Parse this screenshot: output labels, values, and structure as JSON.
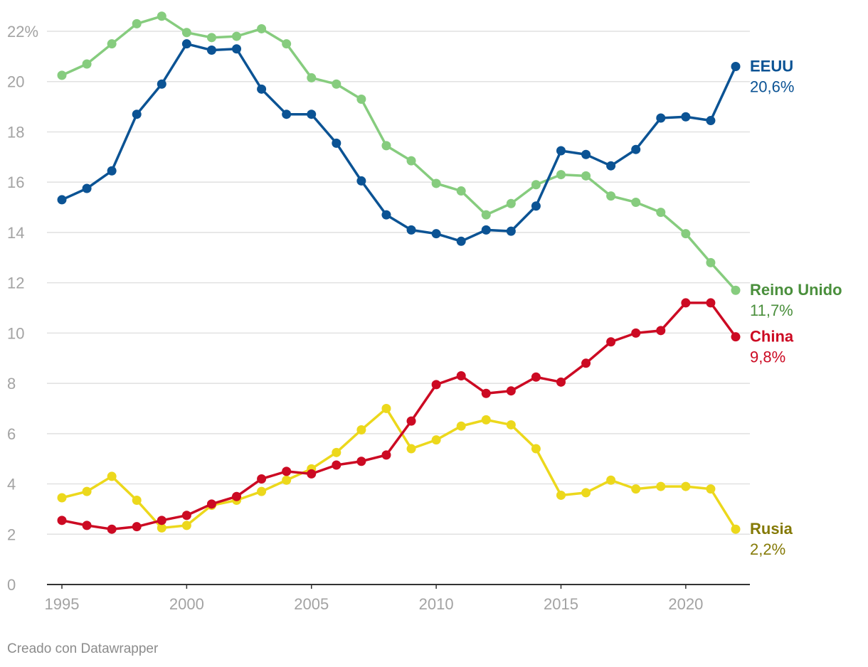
{
  "chart_data": {
    "type": "line",
    "title": "",
    "xlabel": "",
    "ylabel": "",
    "ylim": [
      0,
      22
    ],
    "xlim": [
      1995,
      2022
    ],
    "yticks": [
      0,
      2,
      4,
      6,
      8,
      10,
      12,
      14,
      16,
      18,
      20,
      22
    ],
    "ytick_labels": [
      "0",
      "2",
      "4",
      "6",
      "8",
      "10",
      "12",
      "14",
      "16",
      "18",
      "20",
      "22%"
    ],
    "xticks": [
      1995,
      2000,
      2005,
      2010,
      2015,
      2020
    ],
    "xtick_labels": [
      "1995",
      "2000",
      "2005",
      "2010",
      "2015",
      "2020"
    ],
    "grid": true,
    "x": [
      1995,
      1996,
      1997,
      1998,
      1999,
      2000,
      2001,
      2002,
      2003,
      2004,
      2005,
      2006,
      2007,
      2008,
      2009,
      2010,
      2011,
      2012,
      2013,
      2014,
      2015,
      2016,
      2017,
      2018,
      2019,
      2020,
      2021,
      2022
    ],
    "series": [
      {
        "name": "Reino Unido",
        "end_label": "11,7%",
        "color": "#86cc7e",
        "label_color": "#4a8f3c",
        "values": [
          20.25,
          20.7,
          21.5,
          22.3,
          22.6,
          21.95,
          21.75,
          21.8,
          22.1,
          21.5,
          20.15,
          19.9,
          19.3,
          17.45,
          16.85,
          15.95,
          15.65,
          14.7,
          15.15,
          15.9,
          16.3,
          16.25,
          15.45,
          15.2,
          14.8,
          13.95,
          12.8,
          11.7
        ]
      },
      {
        "name": "EEUU",
        "end_label": "20,6%",
        "color": "#0b5394",
        "label_color": "#0b5394",
        "values": [
          15.3,
          15.75,
          16.45,
          18.7,
          19.9,
          21.5,
          21.25,
          21.3,
          19.7,
          18.7,
          18.7,
          17.55,
          16.05,
          14.7,
          14.1,
          13.95,
          13.65,
          14.1,
          14.05,
          15.05,
          17.25,
          17.1,
          16.65,
          17.3,
          18.55,
          18.6,
          18.45,
          20.6
        ]
      },
      {
        "name": "Rusia",
        "end_label": "2,2%",
        "color": "#ecd81c",
        "label_color": "#857a06",
        "values": [
          3.45,
          3.7,
          4.3,
          3.35,
          2.25,
          2.35,
          3.15,
          3.35,
          3.7,
          4.15,
          4.6,
          5.25,
          6.15,
          7.0,
          5.4,
          5.75,
          6.3,
          6.55,
          6.35,
          5.4,
          3.55,
          3.65,
          4.15,
          3.8,
          3.9,
          3.9,
          3.8,
          2.2
        ]
      },
      {
        "name": "China",
        "end_label": "9,8%",
        "color": "#cc0a23",
        "label_color": "#cc0a23",
        "values": [
          2.55,
          2.35,
          2.2,
          2.3,
          2.55,
          2.75,
          3.2,
          3.5,
          4.2,
          4.5,
          4.4,
          4.75,
          4.9,
          5.15,
          6.5,
          7.95,
          8.3,
          7.6,
          7.7,
          8.25,
          8.05,
          8.8,
          9.65,
          10.0,
          10.1,
          11.2,
          11.2,
          9.85
        ]
      }
    ]
  },
  "footer": {
    "credit": "Creado con Datawrapper"
  }
}
